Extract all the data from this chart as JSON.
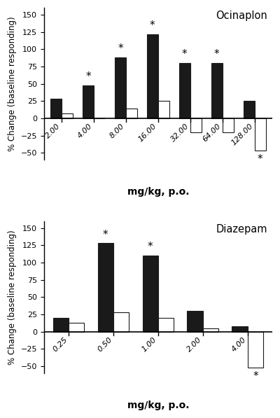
{
  "ocinaplon": {
    "doses": [
      "2.00",
      "4.00",
      "8.00",
      "16.00",
      "32.00",
      "64.00",
      "128.00"
    ],
    "black_vals": [
      28,
      48,
      88,
      122,
      80,
      80,
      25
    ],
    "white_vals": [
      7,
      0,
      14,
      25,
      -20,
      -20,
      -47
    ],
    "black_star_indices": [
      1,
      2,
      3,
      4,
      5
    ],
    "white_star_idx": 6,
    "title": "Ocinaplon",
    "xlabel": "mg/kg, p.o.",
    "ylabel": "% Change (baseline responding)",
    "ylim": [
      -60,
      160
    ],
    "yticks": [
      -50,
      -25,
      0,
      25,
      50,
      75,
      100,
      125,
      150
    ]
  },
  "diazepam": {
    "doses": [
      "0.25",
      "0.50",
      "1.00",
      "2.00",
      "4.00"
    ],
    "black_vals": [
      20,
      128,
      110,
      30,
      8
    ],
    "white_vals": [
      13,
      28,
      20,
      5,
      -52
    ],
    "black_star_indices": [
      1,
      2
    ],
    "white_star_idx": 4,
    "title": "Diazepam",
    "xlabel": "mg/kg, p.o.",
    "ylabel": "% Change (baseline responding)",
    "ylim": [
      -60,
      160
    ],
    "yticks": [
      -50,
      -25,
      0,
      25,
      50,
      75,
      100,
      125,
      150
    ]
  },
  "bar_width": 0.35,
  "black_color": "#1a1a1a",
  "white_color": "#ffffff",
  "edge_color": "#1a1a1a",
  "bg_color": "#ffffff",
  "star_fontsize": 11,
  "label_fontsize": 8.5,
  "title_fontsize": 10.5,
  "tick_fontsize": 8,
  "xlabel_fontsize": 10,
  "ylabel_fontsize": 8.5
}
